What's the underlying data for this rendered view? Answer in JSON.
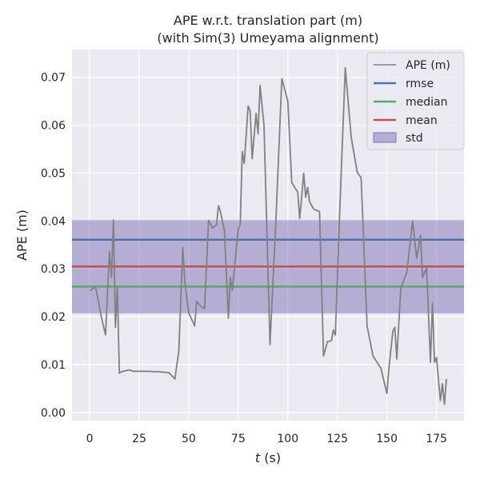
{
  "chart_data": {
    "type": "line",
    "title_line1": "APE w.r.t. translation part (m)",
    "title_line2": "(with Sim(3) Umeyama alignment)",
    "xlabel_var": "t",
    "xlabel_unit": " (s)",
    "ylabel": "APE (m)",
    "xlim": [
      -8.9,
      188.9
    ],
    "ylim": [
      -0.0017,
      0.0758
    ],
    "xticks": [
      0,
      25,
      50,
      75,
      100,
      125,
      150,
      175
    ],
    "yticks": [
      0.0,
      0.01,
      0.02,
      0.03,
      0.04,
      0.05,
      0.06,
      0.07
    ],
    "ytick_labels": [
      "0.00",
      "0.01",
      "0.02",
      "0.03",
      "0.04",
      "0.05",
      "0.06",
      "0.07"
    ],
    "grid": true,
    "legend_position": "top-right",
    "stats": {
      "rmse": 0.0361,
      "median": 0.0263,
      "mean": 0.0305,
      "std_low": 0.0207,
      "std_high": 0.0402
    },
    "colors": {
      "ape": "#808080",
      "rmse": "#4c72b0",
      "median": "#55a868",
      "mean": "#c44e52",
      "std": "#8172b2",
      "background": "#eaeaf2",
      "grid": "#ffffff"
    },
    "legend": [
      "APE (m)",
      "rmse",
      "median",
      "mean",
      "std"
    ],
    "series": [
      {
        "name": "APE (m)",
        "x": [
          0,
          3,
          6,
          8,
          10,
          11,
          12,
          13,
          14,
          15,
          16,
          20,
          22,
          25,
          30,
          33,
          35,
          40,
          43,
          45,
          47,
          48,
          50,
          53,
          54,
          56,
          58,
          60,
          62,
          64,
          65,
          66,
          68,
          70,
          71,
          72,
          75,
          76,
          77,
          78,
          80,
          81,
          82,
          84,
          85,
          86,
          87,
          88,
          91,
          94,
          97,
          100,
          102,
          105,
          106,
          107,
          108,
          109,
          110,
          111,
          113,
          116,
          118,
          120,
          122,
          123,
          124,
          126,
          129,
          132,
          135,
          137,
          140,
          143,
          147,
          150,
          151,
          153,
          154,
          155,
          157,
          160,
          163,
          165,
          167,
          168,
          170,
          172,
          173,
          174,
          175,
          176,
          177,
          178,
          179,
          180
        ],
        "y": [
          0.0254,
          0.0262,
          0.0198,
          0.0162,
          0.0336,
          0.0282,
          0.0402,
          0.0178,
          0.0262,
          0.0082,
          0.0085,
          0.0089,
          0.0086,
          0.0086,
          0.0086,
          0.0085,
          0.0085,
          0.0083,
          0.007,
          0.0128,
          0.0345,
          0.0275,
          0.0208,
          0.0181,
          0.0232,
          0.0222,
          0.0217,
          0.0401,
          0.0385,
          0.0392,
          0.0432,
          0.042,
          0.038,
          0.0197,
          0.0282,
          0.0255,
          0.0383,
          0.0392,
          0.0545,
          0.052,
          0.064,
          0.063,
          0.053,
          0.0625,
          0.0582,
          0.0683,
          0.064,
          0.06,
          0.0142,
          0.0402,
          0.0697,
          0.065,
          0.048,
          0.046,
          0.0405,
          0.045,
          0.05,
          0.045,
          0.047,
          0.044,
          0.0425,
          0.042,
          0.0118,
          0.0148,
          0.015,
          0.0172,
          0.0162,
          0.04,
          0.072,
          0.0575,
          0.0502,
          0.049,
          0.018,
          0.0118,
          0.0092,
          0.004,
          0.0092,
          0.017,
          0.0178,
          0.0112,
          0.026,
          0.0292,
          0.04,
          0.0322,
          0.037,
          0.0282,
          0.0302,
          0.0105,
          0.0228,
          0.0105,
          0.0115,
          0.007,
          0.0025,
          0.006,
          0.0017,
          0.007
        ]
      }
    ]
  }
}
